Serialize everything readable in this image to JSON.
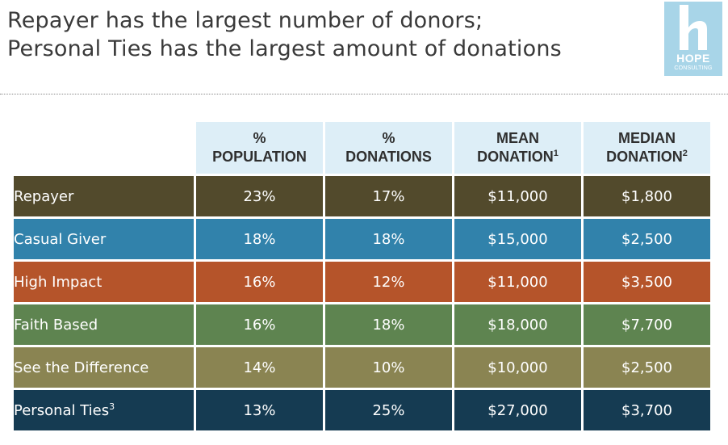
{
  "title": {
    "line1": "Repayer has the largest number of donors;",
    "line2": "Personal Ties has the largest amount of donations"
  },
  "logo": {
    "word": "HOPE",
    "sub": "CONSULTING",
    "color": "#a8d5e8"
  },
  "table": {
    "headers": [
      {
        "line1": "%",
        "line2": "POPULATION",
        "sup": ""
      },
      {
        "line1": "%",
        "line2": "DONATIONS",
        "sup": ""
      },
      {
        "line1": "MEAN",
        "line2": "DONATION",
        "sup": "1"
      },
      {
        "line1": "MEDIAN",
        "line2": "DONATION",
        "sup": "2"
      }
    ],
    "rows": [
      {
        "name": "Repayer",
        "sup": "",
        "color": "#524a2c",
        "population": "23%",
        "donations": "17%",
        "mean": "$11,000",
        "median": "$1,800"
      },
      {
        "name": "Casual Giver",
        "sup": "",
        "color": "#3182ab",
        "population": "18%",
        "donations": "18%",
        "mean": "$15,000",
        "median": "$2,500"
      },
      {
        "name": "High Impact",
        "sup": "",
        "color": "#b5542a",
        "population": "16%",
        "donations": "12%",
        "mean": "$11,000",
        "median": "$3,500"
      },
      {
        "name": "Faith Based",
        "sup": "",
        "color": "#5e8450",
        "population": "16%",
        "donations": "18%",
        "mean": "$18,000",
        "median": "$7,700"
      },
      {
        "name": "See the Difference",
        "sup": "",
        "color": "#8a8452",
        "population": "14%",
        "donations": "10%",
        "mean": "$10,000",
        "median": "$2,500"
      },
      {
        "name": "Personal Ties",
        "sup": "3",
        "color": "#153b52",
        "population": "13%",
        "donations": "25%",
        "mean": "$27,000",
        "median": "$3,700"
      }
    ]
  }
}
